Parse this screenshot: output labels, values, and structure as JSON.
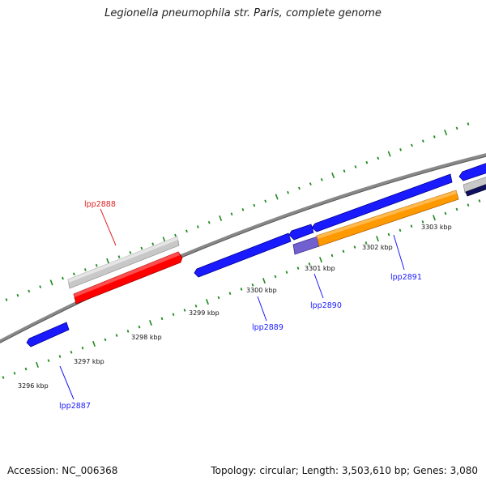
{
  "title": "Legionella pneumophila str. Paris, complete genome",
  "footer": {
    "accession": "Accession: NC_006368",
    "summary": "Topology: circular; Length: 3,503,610 bp; Genes: 3,080"
  },
  "kbp_labels": [
    "3296 kbp",
    "3297 kbp",
    "3298 kbp",
    "3299 kbp",
    "3300 kbp",
    "3301 kbp",
    "3302 kbp",
    "3303 kbp"
  ],
  "genes": [
    {
      "name": "lpp2887",
      "color": "#1a1aff"
    },
    {
      "name": "lpp2888",
      "color": "#e02020"
    },
    {
      "name": "lpp2889",
      "color": "#1a1aff"
    },
    {
      "name": "lpp2890",
      "color": "#1a1aff"
    },
    {
      "name": "lpp2891",
      "color": "#1a1aff"
    }
  ],
  "colors": {
    "cds_forward": "#1a1aff",
    "cds_selected": "#ff0000",
    "pseudo": "#c8c8c8",
    "orange_feature": "#ff9900",
    "purple_feature": "#7060d0",
    "backbone": "#808080",
    "tick": "#1e8a1e"
  }
}
